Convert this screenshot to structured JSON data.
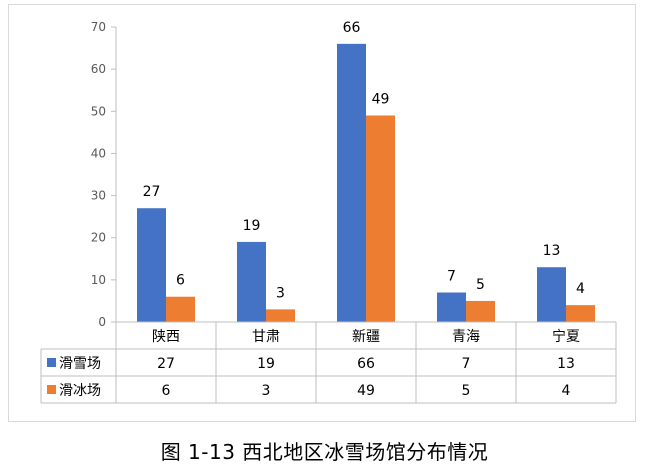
{
  "caption": "图 1-13  西北地区冰雪场馆分布情况",
  "chart_data": {
    "type": "bar",
    "categories": [
      "陕西",
      "甘肃",
      "新疆",
      "青海",
      "宁夏"
    ],
    "series": [
      {
        "name": "滑雪场",
        "values": [
          27,
          19,
          66,
          7,
          13
        ],
        "color": "#4472c4"
      },
      {
        "name": "滑冰场",
        "values": [
          6,
          3,
          49,
          5,
          4
        ],
        "color": "#ed7d31"
      }
    ],
    "ylim": [
      0,
      70
    ],
    "yticks": [
      0,
      10,
      20,
      30,
      40,
      50,
      60,
      70
    ],
    "grid": false,
    "legend": "data-table",
    "title": "",
    "xlabel": "",
    "ylabel": ""
  }
}
